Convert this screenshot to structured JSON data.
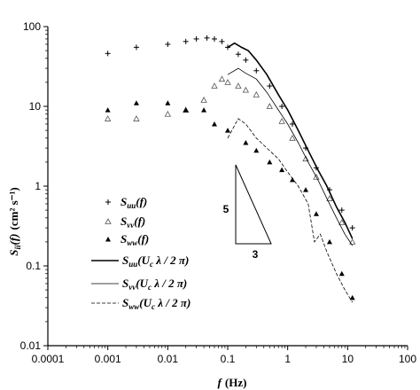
{
  "chart_data": {
    "type": "scatter",
    "x_scale": "log",
    "y_scale": "log",
    "xlim": [
      0.0001,
      100
    ],
    "ylim": [
      0.01,
      100
    ],
    "x_ticks": [
      "0.0001",
      "0.001",
      "0.01",
      "0.1",
      "1",
      "10",
      "100"
    ],
    "y_ticks": [
      "0.01",
      "0.1",
      "1",
      "10",
      "100"
    ],
    "xlabel": {
      "var": "f",
      "unit": "(Hz)"
    },
    "ylabel": {
      "var": "S",
      "sub": "ii",
      "arg": "(f)",
      "unit": "(cm² s⁻¹)"
    },
    "grid": false,
    "legend_placement": "center-left",
    "slope_triangle": {
      "rise_label": "5",
      "run_label": "3"
    },
    "series": [
      {
        "name": "S_uu(f)",
        "label_main": "S",
        "label_sub": "uu",
        "label_arg": "(f)",
        "marker": "plus",
        "color": "#000000",
        "points": [
          [
            0.001,
            46
          ],
          [
            0.003,
            55
          ],
          [
            0.01,
            60
          ],
          [
            0.02,
            65
          ],
          [
            0.03,
            70
          ],
          [
            0.045,
            72
          ],
          [
            0.06,
            70
          ],
          [
            0.08,
            65
          ],
          [
            0.1,
            55
          ],
          [
            0.15,
            45
          ],
          [
            0.2,
            38
          ],
          [
            0.3,
            28
          ],
          [
            0.5,
            18
          ],
          [
            0.8,
            10
          ],
          [
            1.2,
            6
          ],
          [
            2,
            3
          ],
          [
            3,
            1.7
          ],
          [
            5,
            0.9
          ],
          [
            8,
            0.5
          ],
          [
            12,
            0.3
          ]
        ]
      },
      {
        "name": "S_vv(f)",
        "label_main": "S",
        "label_sub": "vv",
        "label_arg": "(f)",
        "marker": "open-triangle",
        "color": "#000000",
        "points": [
          [
            0.001,
            7
          ],
          [
            0.003,
            7
          ],
          [
            0.01,
            8
          ],
          [
            0.02,
            9
          ],
          [
            0.04,
            12
          ],
          [
            0.06,
            18
          ],
          [
            0.08,
            22
          ],
          [
            0.1,
            20
          ],
          [
            0.15,
            18
          ],
          [
            0.2,
            16
          ],
          [
            0.3,
            14
          ],
          [
            0.5,
            10
          ],
          [
            0.8,
            6.5
          ],
          [
            1.2,
            4
          ],
          [
            2,
            2.2
          ],
          [
            3,
            1.3
          ],
          [
            5,
            0.7
          ],
          [
            8,
            0.35
          ],
          [
            12,
            0.2
          ]
        ]
      },
      {
        "name": "S_ww(f)",
        "label_main": "S",
        "label_sub": "ww",
        "label_arg": "(f)",
        "marker": "filled-triangle",
        "color": "#000000",
        "points": [
          [
            0.001,
            9
          ],
          [
            0.003,
            11
          ],
          [
            0.01,
            11
          ],
          [
            0.02,
            9
          ],
          [
            0.04,
            9
          ],
          [
            0.06,
            6
          ],
          [
            0.1,
            5
          ],
          [
            0.2,
            3.5
          ],
          [
            0.3,
            2.8
          ],
          [
            0.5,
            2
          ],
          [
            0.8,
            1.6
          ],
          [
            1.2,
            1.2
          ],
          [
            2,
            0.9
          ],
          [
            3,
            0.45
          ],
          [
            5,
            0.2
          ],
          [
            8,
            0.08
          ],
          [
            12,
            0.04
          ]
        ]
      },
      {
        "name": "S_uu(U_c λ/2π)",
        "label_main": "S",
        "label_sub": "uu",
        "label_arg": "(U",
        "label_arg_sub": "c",
        "label_arg_tail": " λ / 2 π)",
        "line": "thick-solid",
        "color": "#000000",
        "points": [
          [
            0.1,
            55
          ],
          [
            0.13,
            62
          ],
          [
            0.17,
            55
          ],
          [
            0.22,
            50
          ],
          [
            0.3,
            38
          ],
          [
            0.45,
            25
          ],
          [
            0.7,
            14
          ],
          [
            1.0,
            9
          ],
          [
            1.5,
            5
          ],
          [
            2.2,
            2.8
          ],
          [
            3.2,
            1.6
          ],
          [
            4.5,
            1.0
          ],
          [
            6.5,
            0.55
          ],
          [
            9,
            0.35
          ],
          [
            12,
            0.22
          ]
        ]
      },
      {
        "name": "S_vv(U_c λ/2π)",
        "label_main": "S",
        "label_sub": "vv",
        "label_arg": "(U",
        "label_arg_sub": "c",
        "label_arg_tail": " λ / 2 π)",
        "line": "thin-solid",
        "color": "#000000",
        "points": [
          [
            0.1,
            25
          ],
          [
            0.15,
            30
          ],
          [
            0.2,
            26
          ],
          [
            0.3,
            22
          ],
          [
            0.45,
            15
          ],
          [
            0.7,
            9
          ],
          [
            1.0,
            6
          ],
          [
            1.5,
            3.5
          ],
          [
            2.2,
            2
          ],
          [
            3.2,
            1.2
          ],
          [
            4.5,
            0.7
          ],
          [
            6.5,
            0.4
          ],
          [
            9,
            0.25
          ],
          [
            12,
            0.18
          ]
        ]
      },
      {
        "name": "S_ww(U_c λ/2π)",
        "label_main": "S",
        "label_sub": "ww",
        "label_arg": "(U",
        "label_arg_sub": "c",
        "label_arg_tail": " λ / 2 π)",
        "line": "dashed",
        "color": "#000000",
        "points": [
          [
            0.1,
            4
          ],
          [
            0.15,
            7
          ],
          [
            0.2,
            6
          ],
          [
            0.3,
            4
          ],
          [
            0.45,
            3
          ],
          [
            0.7,
            2.2
          ],
          [
            1.0,
            1.5
          ],
          [
            1.5,
            1.0
          ],
          [
            2.2,
            0.6
          ],
          [
            2.8,
            0.2
          ],
          [
            3.5,
            0.25
          ],
          [
            4.5,
            0.15
          ],
          [
            6.5,
            0.08
          ],
          [
            9,
            0.05
          ],
          [
            12,
            0.035
          ]
        ]
      }
    ]
  }
}
